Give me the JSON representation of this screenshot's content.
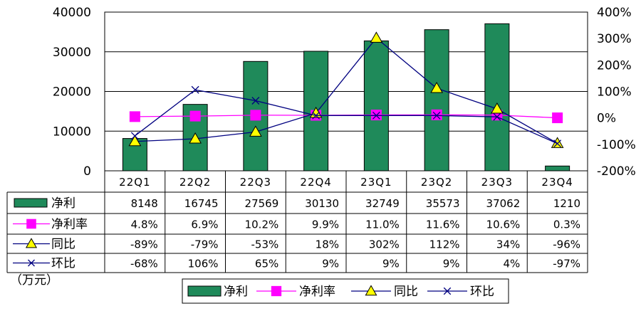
{
  "chart_data": {
    "type": "bar+line",
    "unit_label": "（万元）",
    "categories": [
      "22Q1",
      "22Q2",
      "22Q3",
      "22Q4",
      "23Q1",
      "23Q2",
      "23Q3",
      "23Q4"
    ],
    "left_axis": {
      "ylim": [
        0,
        40000
      ],
      "ticks": [
        "0",
        "10000",
        "20000",
        "30000",
        "40000"
      ],
      "tick_values": [
        0,
        10000,
        20000,
        30000,
        40000
      ]
    },
    "right_axis": {
      "ylim": [
        -200,
        400
      ],
      "ticks": [
        "-200%",
        "-100%",
        "0%",
        "100%",
        "200%",
        "300%",
        "400%"
      ],
      "tick_values": [
        -200,
        -100,
        0,
        100,
        200,
        300,
        400
      ]
    },
    "series": [
      {
        "name": "净利",
        "kind": "bar",
        "axis": "left",
        "color": "#1f8a5a",
        "values": [
          8148,
          16745,
          27569,
          30130,
          32749,
          35573,
          37062,
          1210
        ],
        "labels": [
          "8148",
          "16745",
          "27569",
          "30130",
          "32749",
          "35573",
          "37062",
          "1210"
        ]
      },
      {
        "name": "净利率",
        "kind": "line",
        "axis": "right",
        "color": "#ff00ff",
        "marker": "square",
        "values": [
          4.8,
          6.9,
          10.2,
          9.9,
          11.0,
          11.6,
          10.6,
          0.3
        ],
        "labels": [
          "4.8%",
          "6.9%",
          "10.2%",
          "9.9%",
          "11.0%",
          "11.6%",
          "10.6%",
          "0.3%"
        ]
      },
      {
        "name": "同比",
        "kind": "line",
        "axis": "right",
        "color": "#000080",
        "marker": "triangle",
        "marker_fill": "#ffff00",
        "values": [
          -89,
          -79,
          -53,
          18,
          302,
          112,
          34,
          -96
        ],
        "labels": [
          "-89%",
          "-79%",
          "-53%",
          "18%",
          "302%",
          "112%",
          "34%",
          "-96%"
        ]
      },
      {
        "name": "环比",
        "kind": "line",
        "axis": "right",
        "color": "#000080",
        "marker": "x",
        "values": [
          -68,
          106,
          65,
          9,
          9,
          9,
          4,
          -97
        ],
        "labels": [
          "-68%",
          "106%",
          "65%",
          "9%",
          "9%",
          "9%",
          "4%",
          "-97%"
        ]
      }
    ],
    "legend": {
      "position": "bottom",
      "items": [
        "净利",
        "净利率",
        "同比",
        "环比"
      ]
    },
    "grid": true
  }
}
